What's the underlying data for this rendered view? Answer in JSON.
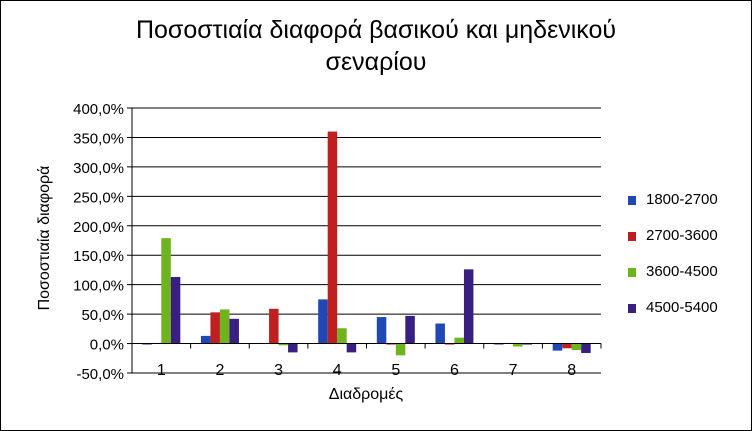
{
  "chart_data": {
    "type": "bar",
    "title_line1": "Ποσοστιαία διαφορά βασικού και μηδενικού",
    "title_line2": "σεναρίου",
    "xlabel": "Διαδρομές",
    "ylabel": "Ποσοστιαία διαφορά",
    "categories": [
      "1",
      "2",
      "3",
      "4",
      "5",
      "6",
      "7",
      "8"
    ],
    "ylim": [
      -50,
      400
    ],
    "yticks": [
      400,
      350,
      300,
      250,
      200,
      150,
      100,
      50,
      0,
      -50
    ],
    "ytick_labels": [
      "400,0%",
      "350,0%",
      "300,0%",
      "250,0%",
      "200,0%",
      "150,0%",
      "100,0%",
      "50,0%",
      "0,0%",
      "-50,0%"
    ],
    "grid": true,
    "legend_position": "right",
    "series": [
      {
        "name": "1800-2700",
        "color": "#1f48b4",
        "values": [
          -1,
          13,
          1,
          75,
          45,
          34,
          -1,
          -12
        ]
      },
      {
        "name": "2700-3600",
        "color": "#bf1f1f",
        "values": [
          1,
          53,
          59,
          360,
          -1,
          -1,
          1,
          -8
        ]
      },
      {
        "name": "3600-4500",
        "color": "#6fb41f",
        "values": [
          179,
          58,
          -3,
          26,
          -20,
          10,
          -5,
          -11
        ]
      },
      {
        "name": "4500-5400",
        "color": "#3a1f82",
        "values": [
          113,
          42,
          -15,
          -15,
          47,
          126,
          -1,
          -16
        ]
      }
    ]
  }
}
